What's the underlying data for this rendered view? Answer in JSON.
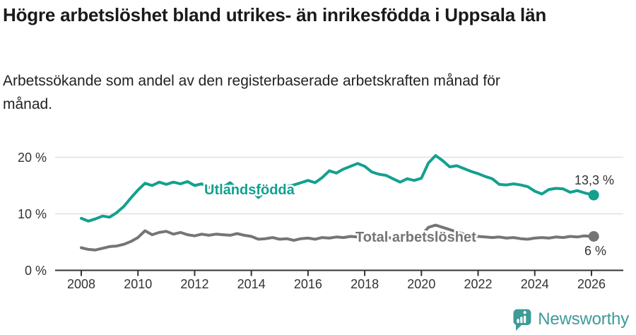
{
  "header": {
    "title": "Högre arbetslöshet bland utrikes- än inrikesfödda i Uppsala län",
    "subtitle": "Arbetssökande som andel av den registerbaserade arbetskraften månad för månad."
  },
  "chart_data": {
    "type": "line",
    "title": "Högre arbetslöshet bland utrikes- än inrikesfödda i Uppsala län",
    "subtitle": "Arbetssökande som andel av den registerbaserade arbetskraften månad för månad.",
    "unit": "%",
    "grid": "horizontal",
    "legend_position": "inline-labels",
    "x_axis": {
      "range": [
        2007.1,
        2027.1
      ],
      "ticks": [
        2008,
        2010,
        2012,
        2014,
        2016,
        2018,
        2020,
        2022,
        2024,
        2026
      ]
    },
    "y_axis": {
      "range": [
        0,
        20
      ],
      "ticks": [
        {
          "value": 0,
          "label": "0 %"
        },
        {
          "value": 10,
          "label": "10 %"
        },
        {
          "value": 20,
          "label": "20 %"
        }
      ]
    },
    "colors": {
      "grid": "#e0e0e0",
      "axis": "#333333",
      "text": "#333333"
    },
    "series": [
      {
        "name": "Utlandsfödda",
        "color": "#13a08f",
        "end_label": "13,3 %",
        "points": [
          [
            2008,
            9.2
          ],
          [
            2008.25,
            8.7
          ],
          [
            2008.5,
            9.1
          ],
          [
            2008.75,
            9.6
          ],
          [
            2009,
            9.4
          ],
          [
            2009.25,
            10.2
          ],
          [
            2009.5,
            11.3
          ],
          [
            2009.75,
            12.8
          ],
          [
            2010,
            14.2
          ],
          [
            2010.25,
            15.4
          ],
          [
            2010.5,
            15
          ],
          [
            2010.75,
            15.6
          ],
          [
            2011,
            15.2
          ],
          [
            2011.25,
            15.6
          ],
          [
            2011.5,
            15.3
          ],
          [
            2011.75,
            15.7
          ],
          [
            2012,
            15
          ],
          [
            2012.25,
            15.3
          ],
          [
            2012.5,
            14.6
          ],
          [
            2012.75,
            15.1
          ],
          [
            2013,
            14.7
          ],
          [
            2013.25,
            15.5
          ],
          [
            2013.5,
            14.4
          ],
          [
            2013.75,
            14.9
          ],
          [
            2014,
            14.1
          ],
          [
            2014.25,
            12.9
          ],
          [
            2014.5,
            13.9
          ],
          [
            2014.75,
            14.5
          ],
          [
            2015,
            14.2
          ],
          [
            2015.25,
            14.8
          ],
          [
            2015.5,
            15.1
          ],
          [
            2015.75,
            15.5
          ],
          [
            2016,
            15.9
          ],
          [
            2016.25,
            15.5
          ],
          [
            2016.5,
            16.4
          ],
          [
            2016.75,
            17.6
          ],
          [
            2017,
            17.2
          ],
          [
            2017.25,
            17.9
          ],
          [
            2017.5,
            18.4
          ],
          [
            2017.75,
            18.9
          ],
          [
            2018,
            18.4
          ],
          [
            2018.25,
            17.4
          ],
          [
            2018.5,
            17
          ],
          [
            2018.75,
            16.8
          ],
          [
            2019,
            16.2
          ],
          [
            2019.25,
            15.6
          ],
          [
            2019.5,
            16.2
          ],
          [
            2019.75,
            15.9
          ],
          [
            2020,
            16.3
          ],
          [
            2020.25,
            19
          ],
          [
            2020.5,
            20.3
          ],
          [
            2020.75,
            19.4
          ],
          [
            2021,
            18.3
          ],
          [
            2021.25,
            18.5
          ],
          [
            2021.5,
            18
          ],
          [
            2021.75,
            17.5
          ],
          [
            2022,
            17.1
          ],
          [
            2022.25,
            16.6
          ],
          [
            2022.5,
            16.2
          ],
          [
            2022.75,
            15.2
          ],
          [
            2023,
            15.1
          ],
          [
            2023.25,
            15.3
          ],
          [
            2023.5,
            15.1
          ],
          [
            2023.75,
            14.8
          ],
          [
            2024,
            14
          ],
          [
            2024.25,
            13.5
          ],
          [
            2024.5,
            14.3
          ],
          [
            2024.75,
            14.5
          ],
          [
            2025,
            14.4
          ],
          [
            2025.25,
            13.8
          ],
          [
            2025.5,
            14.1
          ],
          [
            2025.75,
            13.7
          ],
          [
            2026,
            13.4
          ],
          [
            2026.08,
            13.3
          ]
        ]
      },
      {
        "name": "Total arbetslöshet",
        "color": "#757575",
        "end_label": "6 %",
        "points": [
          [
            2008,
            4
          ],
          [
            2008.25,
            3.7
          ],
          [
            2008.5,
            3.6
          ],
          [
            2008.75,
            3.9
          ],
          [
            2009,
            4.2
          ],
          [
            2009.25,
            4.3
          ],
          [
            2009.5,
            4.6
          ],
          [
            2009.75,
            5.1
          ],
          [
            2010,
            5.8
          ],
          [
            2010.25,
            7
          ],
          [
            2010.5,
            6.3
          ],
          [
            2010.75,
            6.7
          ],
          [
            2011,
            6.9
          ],
          [
            2011.25,
            6.4
          ],
          [
            2011.5,
            6.7
          ],
          [
            2011.75,
            6.3
          ],
          [
            2012,
            6.1
          ],
          [
            2012.25,
            6.4
          ],
          [
            2012.5,
            6.2
          ],
          [
            2012.75,
            6.4
          ],
          [
            2013,
            6.3
          ],
          [
            2013.25,
            6.2
          ],
          [
            2013.5,
            6.5
          ],
          [
            2013.75,
            6.2
          ],
          [
            2014,
            6
          ],
          [
            2014.25,
            5.5
          ],
          [
            2014.5,
            5.6
          ],
          [
            2014.75,
            5.8
          ],
          [
            2015,
            5.5
          ],
          [
            2015.25,
            5.6
          ],
          [
            2015.5,
            5.3
          ],
          [
            2015.75,
            5.6
          ],
          [
            2016,
            5.7
          ],
          [
            2016.25,
            5.5
          ],
          [
            2016.5,
            5.8
          ],
          [
            2016.75,
            5.7
          ],
          [
            2017,
            5.9
          ],
          [
            2017.25,
            5.8
          ],
          [
            2017.5,
            6
          ],
          [
            2017.75,
            5.9
          ],
          [
            2018,
            5.8
          ],
          [
            2018.25,
            5.7
          ],
          [
            2018.5,
            5.9
          ],
          [
            2018.75,
            5.8
          ],
          [
            2019,
            5.7
          ],
          [
            2019.25,
            5.6
          ],
          [
            2019.5,
            5.8
          ],
          [
            2019.75,
            5.9
          ],
          [
            2020,
            6.2
          ],
          [
            2020.25,
            7.6
          ],
          [
            2020.5,
            8
          ],
          [
            2020.75,
            7.6
          ],
          [
            2021,
            7.2
          ],
          [
            2021.25,
            6.8
          ],
          [
            2021.5,
            6.4
          ],
          [
            2021.75,
            6.1
          ],
          [
            2022,
            6
          ],
          [
            2022.25,
            5.9
          ],
          [
            2022.5,
            5.8
          ],
          [
            2022.75,
            5.9
          ],
          [
            2023,
            5.7
          ],
          [
            2023.25,
            5.8
          ],
          [
            2023.5,
            5.6
          ],
          [
            2023.75,
            5.5
          ],
          [
            2024,
            5.7
          ],
          [
            2024.25,
            5.8
          ],
          [
            2024.5,
            5.7
          ],
          [
            2024.75,
            5.9
          ],
          [
            2025,
            5.8
          ],
          [
            2025.25,
            6
          ],
          [
            2025.5,
            5.9
          ],
          [
            2025.75,
            6.1
          ],
          [
            2026,
            6
          ],
          [
            2026.08,
            6
          ]
        ]
      }
    ]
  },
  "footer": {
    "brand": "Newsworthy"
  }
}
